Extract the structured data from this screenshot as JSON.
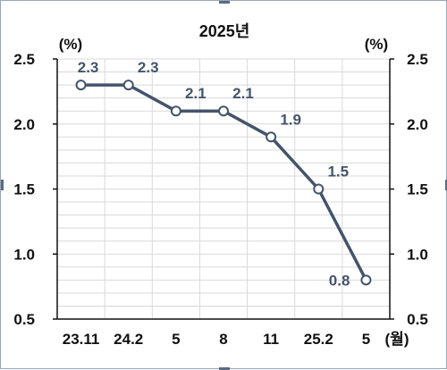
{
  "chart_data": {
    "type": "line",
    "title": "2025년",
    "categories": [
      "23.11",
      "24.2",
      "5",
      "8",
      "11",
      "25.2",
      "5"
    ],
    "x_unit_label": "(월)",
    "y_unit_left": "(%)",
    "y_unit_right": "(%)",
    "ylim": [
      0.5,
      2.5
    ],
    "yticks": [
      "2.5",
      "2.0",
      "1.5",
      "1.0",
      "0.5"
    ],
    "ytick_values": [
      2.5,
      2.0,
      1.5,
      1.0,
      0.5
    ],
    "grid": true,
    "series": [
      {
        "values": [
          2.3,
          2.3,
          2.1,
          2.1,
          1.9,
          1.5,
          0.8
        ],
        "labels": [
          "2.3",
          "2.3",
          "2.1",
          "2.1",
          "1.9",
          "1.5",
          "0.8"
        ],
        "color": "#44546a"
      }
    ]
  }
}
